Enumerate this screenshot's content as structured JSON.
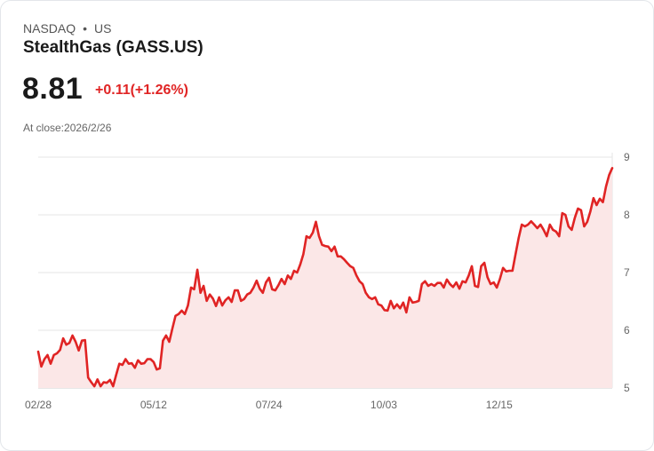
{
  "header": {
    "exchange": "NASDAQ",
    "separator": "•",
    "region": "US",
    "title": "StealthGas (GASS.US)",
    "price": "8.81",
    "change": "+0.11(+1.26%)",
    "close_label": "At close:2026/2/26"
  },
  "colors": {
    "line": "#e02424",
    "fill": "#fbe7e7",
    "grid": "#e5e5e5"
  },
  "chart_data": {
    "type": "area",
    "title": "StealthGas (GASS.US)",
    "xlabel": "",
    "ylabel": "",
    "ylim": [
      5,
      9
    ],
    "yticks": [
      "9",
      "8",
      "7",
      "6",
      "5"
    ],
    "xticks": [
      {
        "label": "02/28",
        "frac": 0
      },
      {
        "label": "05/12",
        "frac": 0.201
      },
      {
        "label": "07/24",
        "frac": 0.402
      },
      {
        "label": "10/03",
        "frac": 0.602
      },
      {
        "label": "12/15",
        "frac": 0.803
      }
    ],
    "grid": true,
    "values": [
      5.63,
      5.37,
      5.5,
      5.57,
      5.42,
      5.57,
      5.6,
      5.66,
      5.86,
      5.75,
      5.78,
      5.91,
      5.8,
      5.65,
      5.82,
      5.83,
      5.18,
      5.1,
      5.03,
      5.15,
      5.03,
      5.1,
      5.09,
      5.14,
      5.03,
      5.23,
      5.42,
      5.4,
      5.5,
      5.42,
      5.43,
      5.35,
      5.48,
      5.42,
      5.43,
      5.5,
      5.5,
      5.45,
      5.32,
      5.34,
      5.82,
      5.91,
      5.8,
      6.03,
      6.25,
      6.28,
      6.34,
      6.28,
      6.43,
      6.74,
      6.71,
      7.05,
      6.65,
      6.77,
      6.51,
      6.62,
      6.55,
      6.42,
      6.57,
      6.43,
      6.52,
      6.57,
      6.49,
      6.69,
      6.69,
      6.51,
      6.54,
      6.62,
      6.65,
      6.74,
      6.86,
      6.72,
      6.65,
      6.83,
      6.91,
      6.71,
      6.69,
      6.78,
      6.89,
      6.8,
      6.95,
      6.89,
      7.03,
      7.0,
      7.14,
      7.32,
      7.63,
      7.6,
      7.69,
      7.88,
      7.63,
      7.48,
      7.46,
      7.45,
      7.37,
      7.45,
      7.28,
      7.28,
      7.23,
      7.17,
      7.11,
      7.08,
      6.95,
      6.85,
      6.8,
      6.65,
      6.57,
      6.54,
      6.57,
      6.45,
      6.43,
      6.35,
      6.34,
      6.51,
      6.38,
      6.45,
      6.38,
      6.48,
      6.31,
      6.57,
      6.48,
      6.49,
      6.51,
      6.8,
      6.85,
      6.77,
      6.8,
      6.77,
      6.82,
      6.82,
      6.74,
      6.88,
      6.8,
      6.75,
      6.83,
      6.72,
      6.85,
      6.83,
      6.95,
      7.11,
      6.77,
      6.75,
      7.11,
      7.17,
      6.92,
      6.8,
      6.83,
      6.74,
      6.89,
      7.08,
      7.02,
      7.03,
      7.03,
      7.32,
      7.6,
      7.83,
      7.8,
      7.83,
      7.89,
      7.83,
      7.77,
      7.83,
      7.74,
      7.63,
      7.83,
      7.74,
      7.71,
      7.63,
      8.03,
      8.0,
      7.8,
      7.74,
      7.95,
      8.11,
      8.08,
      7.8,
      7.88,
      8.06,
      8.29,
      8.17,
      8.28,
      8.22,
      8.49,
      8.69,
      8.81
    ]
  }
}
